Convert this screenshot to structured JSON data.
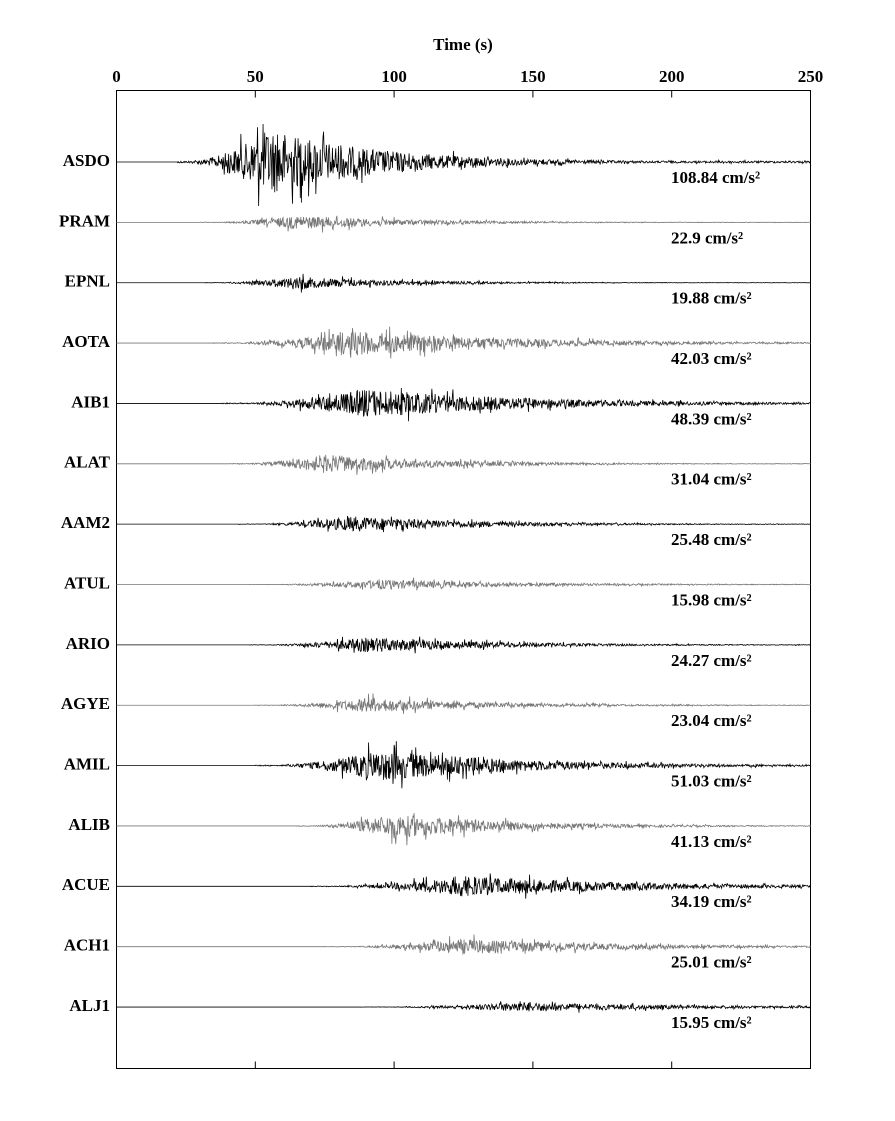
{
  "chart_data": {
    "type": "seismogram",
    "xlabel": "Time (s)",
    "xlim": [
      0,
      250
    ],
    "xticks": [
      0,
      50,
      100,
      150,
      200,
      250
    ],
    "series": [
      {
        "name": "ASDO",
        "color": "#000000",
        "value": 108.84,
        "value_label": "108.84 cm/s²",
        "onset": 22,
        "peak_time": 55
      },
      {
        "name": "PRAM",
        "color": "#777777",
        "value": 22.9,
        "value_label": "22.9 cm/s²",
        "onset": 30,
        "peak_time": 65
      },
      {
        "name": "EPNL",
        "color": "#000000",
        "value": 19.88,
        "value_label": "19.88 cm/s²",
        "onset": 32,
        "peak_time": 65
      },
      {
        "name": "AOTA",
        "color": "#777777",
        "value": 42.03,
        "value_label": "42.03 cm/s²",
        "onset": 35,
        "peak_time": 85
      },
      {
        "name": "AIB1",
        "color": "#000000",
        "value": 48.39,
        "value_label": "48.39 cm/s²",
        "onset": 38,
        "peak_time": 90
      },
      {
        "name": "ALAT",
        "color": "#777777",
        "value": 31.04,
        "value_label": "31.04 cm/s²",
        "onset": 40,
        "peak_time": 75
      },
      {
        "name": "AAM2",
        "color": "#000000",
        "value": 25.48,
        "value_label": "25.48 cm/s²",
        "onset": 44,
        "peak_time": 85
      },
      {
        "name": "ATUL",
        "color": "#777777",
        "value": 15.98,
        "value_label": "15.98 cm/s²",
        "onset": 48,
        "peak_time": 95
      },
      {
        "name": "ARIO",
        "color": "#000000",
        "value": 24.27,
        "value_label": "24.27 cm/s²",
        "onset": 48,
        "peak_time": 90
      },
      {
        "name": "AGYE",
        "color": "#777777",
        "value": 23.04,
        "value_label": "23.04 cm/s²",
        "onset": 50,
        "peak_time": 90
      },
      {
        "name": "AMIL",
        "color": "#000000",
        "value": 51.03,
        "value_label": "51.03 cm/s²",
        "onset": 50,
        "peak_time": 95
      },
      {
        "name": "ALIB",
        "color": "#777777",
        "value": 41.13,
        "value_label": "41.13 cm/s²",
        "onset": 65,
        "peak_time": 100
      },
      {
        "name": "ACUE",
        "color": "#000000",
        "value": 34.19,
        "value_label": "34.19 cm/s²",
        "onset": 70,
        "peak_time": 125
      },
      {
        "name": "ACH1",
        "color": "#777777",
        "value": 25.01,
        "value_label": "25.01 cm/s²",
        "onset": 75,
        "peak_time": 125
      },
      {
        "name": "ALJ1",
        "color": "#000000",
        "value": 15.95,
        "value_label": "15.95 cm/s²",
        "onset": 88,
        "peak_time": 145
      }
    ]
  }
}
